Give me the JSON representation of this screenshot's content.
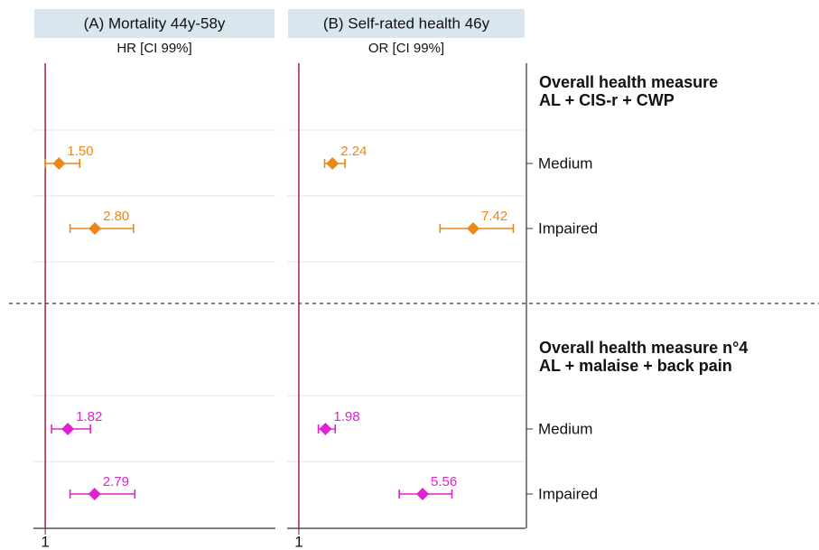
{
  "groups": [
    {
      "heading": [
        "Overall health measure",
        "AL + CIS-r + CWP"
      ],
      "categories": [
        "Medium",
        "Impaired"
      ],
      "color": "#ec8618"
    },
    {
      "heading": [
        "Overall health measure n°4",
        "AL + malaise + back pain"
      ],
      "categories": [
        "Medium",
        "Impaired"
      ],
      "color": "#e022d2"
    }
  ],
  "chart_data": [
    {
      "type": "forest",
      "title": "(A) Mortality 44y-58y",
      "subtitle": "HR [CI 99%]",
      "values": [
        1.5,
        2.8,
        1.82,
        2.79
      ],
      "value_labels": [
        "1.50",
        "2.80",
        "1.82",
        "2.79"
      ],
      "ci_low": [
        1.0,
        1.9,
        1.23,
        1.9
      ],
      "ci_high": [
        2.25,
        4.2,
        2.64,
        4.25
      ],
      "xlim": [
        0.57,
        9.35
      ],
      "xticks": [
        1
      ],
      "grid": true
    },
    {
      "type": "forest",
      "title": "(B) Self-rated health 46y",
      "subtitle": "OR [CI 99%]",
      "values": [
        2.24,
        7.42,
        1.98,
        5.56
      ],
      "value_labels": [
        "2.24",
        "7.42",
        "1.98",
        "5.56"
      ],
      "ci_low": [
        1.95,
        6.2,
        1.72,
        4.7
      ],
      "ci_high": [
        2.7,
        8.9,
        2.34,
        6.64
      ],
      "xlim": [
        0.57,
        9.35
      ],
      "xticks": [
        1
      ],
      "grid": true
    }
  ]
}
